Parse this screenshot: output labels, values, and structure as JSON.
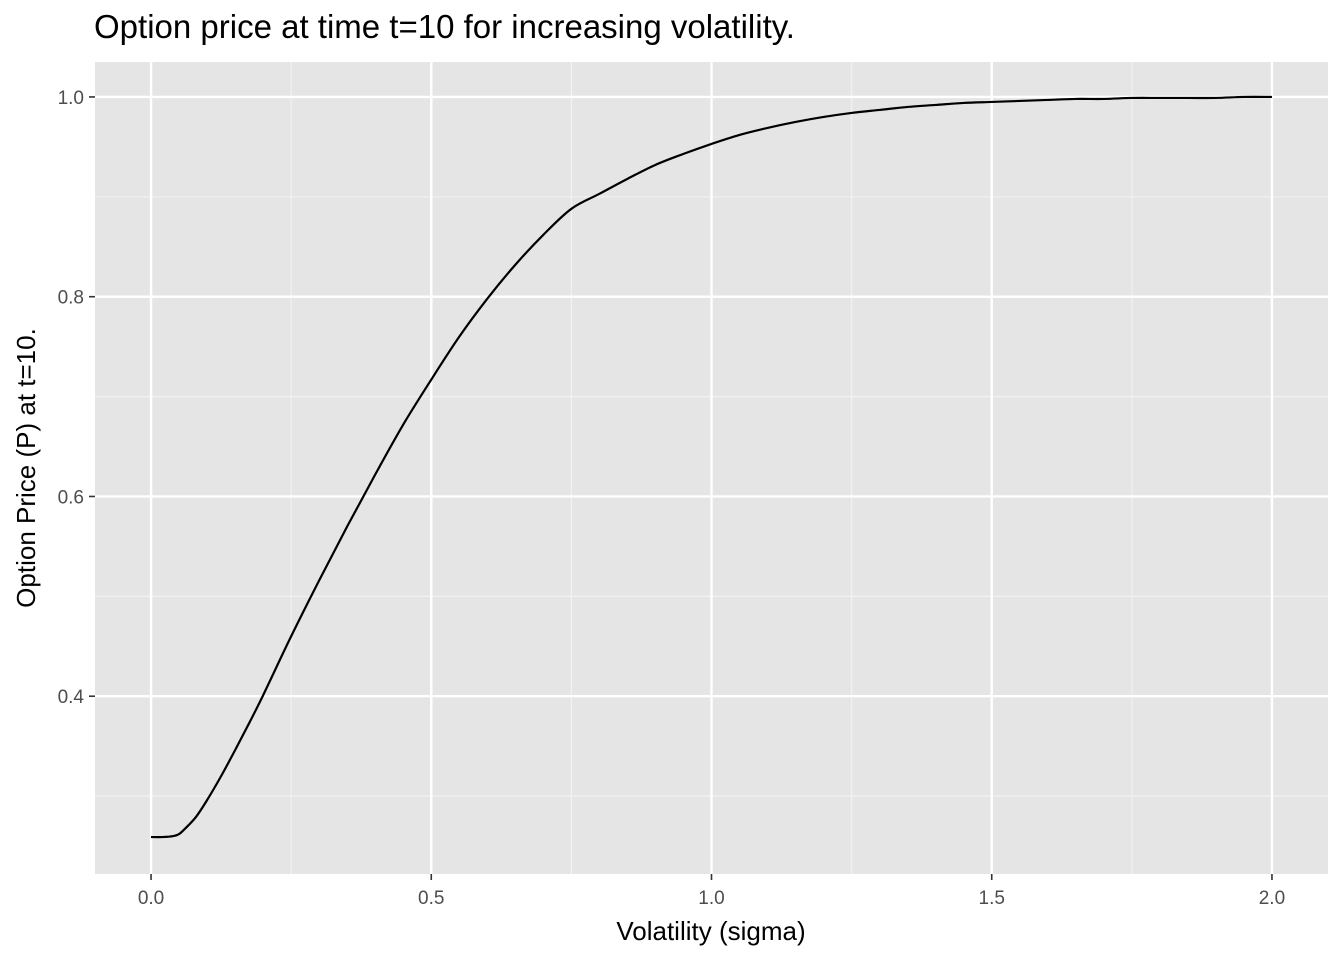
{
  "chart_data": {
    "type": "line",
    "title": "Option price at time t=10 for increasing volatility.",
    "xlabel": "Volatility (sigma)",
    "ylabel": "Option Price (P) at t=10.",
    "xlim": [
      -0.1,
      2.1
    ],
    "ylim": [
      0.222,
      1.035
    ],
    "x_ticks": [
      0.0,
      0.5,
      1.0,
      1.5,
      2.0
    ],
    "x_tick_labels": [
      "0.0",
      "0.5",
      "1.0",
      "1.5",
      "2.0"
    ],
    "y_ticks": [
      0.4,
      0.6,
      0.8,
      1.0
    ],
    "y_tick_labels": [
      "0.4",
      "0.6",
      "0.8",
      "1.0"
    ],
    "grid": true,
    "legend": "none",
    "colors": {
      "panel": "#e5e5e5",
      "grid": "#ffffff",
      "line": "#000000"
    },
    "series": [
      {
        "x": [
          0.0,
          0.02,
          0.04,
          0.05,
          0.06,
          0.08,
          0.1,
          0.125,
          0.15,
          0.175,
          0.2,
          0.25,
          0.3,
          0.35,
          0.4,
          0.45,
          0.5,
          0.55,
          0.6,
          0.65,
          0.7,
          0.75,
          0.8,
          0.85,
          0.9,
          0.95,
          1.0,
          1.05,
          1.1,
          1.15,
          1.2,
          1.25,
          1.3,
          1.35,
          1.4,
          1.45,
          1.5,
          1.55,
          1.6,
          1.65,
          1.7,
          1.75,
          1.8,
          1.85,
          1.9,
          1.95,
          2.0
        ],
        "y": [
          0.259,
          0.259,
          0.26,
          0.262,
          0.267,
          0.279,
          0.296,
          0.32,
          0.346,
          0.373,
          0.401,
          0.46,
          0.516,
          0.57,
          0.622,
          0.672,
          0.717,
          0.76,
          0.798,
          0.832,
          0.862,
          0.888,
          0.903,
          0.918,
          0.932,
          0.943,
          0.953,
          0.962,
          0.969,
          0.975,
          0.98,
          0.984,
          0.987,
          0.99,
          0.992,
          0.994,
          0.995,
          0.996,
          0.997,
          0.998,
          0.998,
          0.999,
          0.999,
          0.999,
          0.999,
          1.0,
          1.0
        ]
      }
    ]
  }
}
